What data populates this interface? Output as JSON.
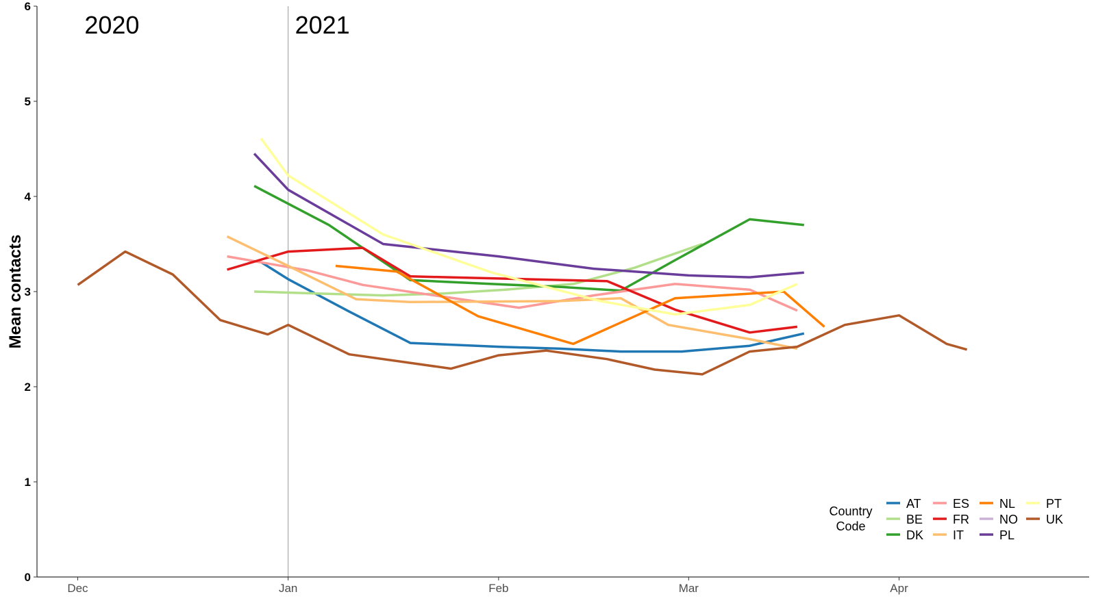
{
  "chart_data": {
    "type": "line",
    "title": "",
    "xlabel": "",
    "ylabel": "Mean contacts",
    "ylim": [
      0,
      6
    ],
    "yticks": [
      "0",
      "1",
      "2",
      "3",
      "4",
      "5",
      "6"
    ],
    "xlim": [
      "2020-11-25",
      "2021-04-29"
    ],
    "xticks": [
      {
        "date": "2020-12-01",
        "label": "Dec"
      },
      {
        "date": "2021-01-01",
        "label": "Jan"
      },
      {
        "date": "2021-02-01",
        "label": "Feb"
      },
      {
        "date": "2021-03-01",
        "label": "Mar"
      },
      {
        "date": "2021-04-01",
        "label": "Apr"
      }
    ],
    "grid": false,
    "legend": {
      "title": "Country\nCode",
      "placement": "bottom-right"
    },
    "annotations": [
      {
        "text": "2020",
        "date": "2020-12-02",
        "y": 5.8
      },
      {
        "text": "2021",
        "date": "2021-01-02",
        "y": 5.8
      }
    ],
    "vline": {
      "date": "2021-01-01"
    },
    "series": [
      {
        "name": "AT",
        "color": "#1f78b4",
        "x": [
          "2020-12-28",
          "2021-01-01",
          "2021-01-10",
          "2021-01-19",
          "2021-02-01",
          "2021-02-10",
          "2021-02-19",
          "2021-02-28",
          "2021-03-10",
          "2021-03-18"
        ],
        "y": [
          3.31,
          3.13,
          2.79,
          2.46,
          2.42,
          2.4,
          2.37,
          2.37,
          2.43,
          2.56
        ]
      },
      {
        "name": "BE",
        "color": "#b2df8a",
        "x": [
          "2020-12-27",
          "2021-01-05",
          "2021-01-15",
          "2021-01-24",
          "2021-02-02",
          "2021-02-12",
          "2021-02-21",
          "2021-03-03"
        ],
        "y": [
          3.0,
          2.98,
          2.96,
          2.98,
          3.02,
          3.08,
          3.25,
          3.5
        ]
      },
      {
        "name": "DK",
        "color": "#33a02c",
        "x": [
          "2020-12-27",
          "2021-01-07",
          "2021-01-19",
          "2021-01-31",
          "2021-02-10",
          "2021-02-19",
          "2021-02-27",
          "2021-03-10",
          "2021-03-18"
        ],
        "y": [
          4.11,
          3.7,
          3.12,
          3.08,
          3.05,
          3.01,
          3.33,
          3.76,
          3.7
        ]
      },
      {
        "name": "ES",
        "color": "#fb9a99",
        "x": [
          "2020-12-23",
          "2021-01-04",
          "2021-01-12",
          "2021-02-04",
          "2021-02-15",
          "2021-02-27",
          "2021-03-10",
          "2021-03-17"
        ],
        "y": [
          3.37,
          3.22,
          3.07,
          2.83,
          2.96,
          3.08,
          3.02,
          2.8
        ]
      },
      {
        "name": "FR",
        "color": "#e31a1c",
        "x": [
          "2020-12-23",
          "2021-01-01",
          "2021-01-12",
          "2021-01-19",
          "2021-02-17",
          "2021-02-27",
          "2021-03-10",
          "2021-03-17"
        ],
        "y": [
          3.23,
          3.42,
          3.46,
          3.16,
          3.11,
          2.81,
          2.57,
          2.63
        ]
      },
      {
        "name": "IT",
        "color": "#fdbf6f",
        "x": [
          "2020-12-23",
          "2021-01-01",
          "2021-01-11",
          "2021-01-19",
          "2021-02-10",
          "2021-02-19",
          "2021-02-26",
          "2021-03-10",
          "2021-03-17"
        ],
        "y": [
          3.58,
          3.27,
          2.92,
          2.89,
          2.9,
          2.93,
          2.65,
          2.5,
          2.4
        ]
      },
      {
        "name": "NL",
        "color": "#ff7f00",
        "x": [
          "2021-01-08",
          "2021-01-17",
          "2021-01-29",
          "2021-02-12",
          "2021-02-27",
          "2021-03-15",
          "2021-03-21"
        ],
        "y": [
          3.27,
          3.21,
          2.74,
          2.45,
          2.93,
          3.0,
          2.63
        ]
      },
      {
        "name": "NO",
        "color": "#cab2d6",
        "x": [],
        "y": []
      },
      {
        "name": "PL",
        "color": "#6a3d9a",
        "x": [
          "2020-12-27",
          "2021-01-01",
          "2021-01-15",
          "2021-02-01",
          "2021-02-15",
          "2021-03-01",
          "2021-03-10",
          "2021-03-18"
        ],
        "y": [
          4.45,
          4.07,
          3.5,
          3.37,
          3.24,
          3.17,
          3.15,
          3.2
        ]
      },
      {
        "name": "PT",
        "color": "#ffff99",
        "x": [
          "2020-12-28",
          "2021-01-01",
          "2021-01-15",
          "2021-01-31",
          "2021-02-16",
          "2021-02-27",
          "2021-03-10",
          "2021-03-17"
        ],
        "y": [
          4.61,
          4.22,
          3.6,
          3.2,
          2.9,
          2.76,
          2.86,
          3.08
        ]
      },
      {
        "name": "UK",
        "color": "#b15928",
        "x": [
          "2020-12-01",
          "2020-12-08",
          "2020-12-15",
          "2020-12-22",
          "2020-12-29",
          "2021-01-01",
          "2021-01-10",
          "2021-01-20",
          "2021-01-25",
          "2021-02-01",
          "2021-02-08",
          "2021-02-17",
          "2021-02-24",
          "2021-03-03",
          "2021-03-10",
          "2021-03-17",
          "2021-03-24",
          "2021-04-01",
          "2021-04-08",
          "2021-04-11"
        ],
        "y": [
          3.07,
          3.42,
          3.18,
          2.7,
          2.55,
          2.65,
          2.34,
          2.24,
          2.19,
          2.33,
          2.38,
          2.29,
          2.18,
          2.13,
          2.37,
          2.42,
          2.65,
          2.75,
          2.45,
          2.39
        ]
      }
    ]
  }
}
